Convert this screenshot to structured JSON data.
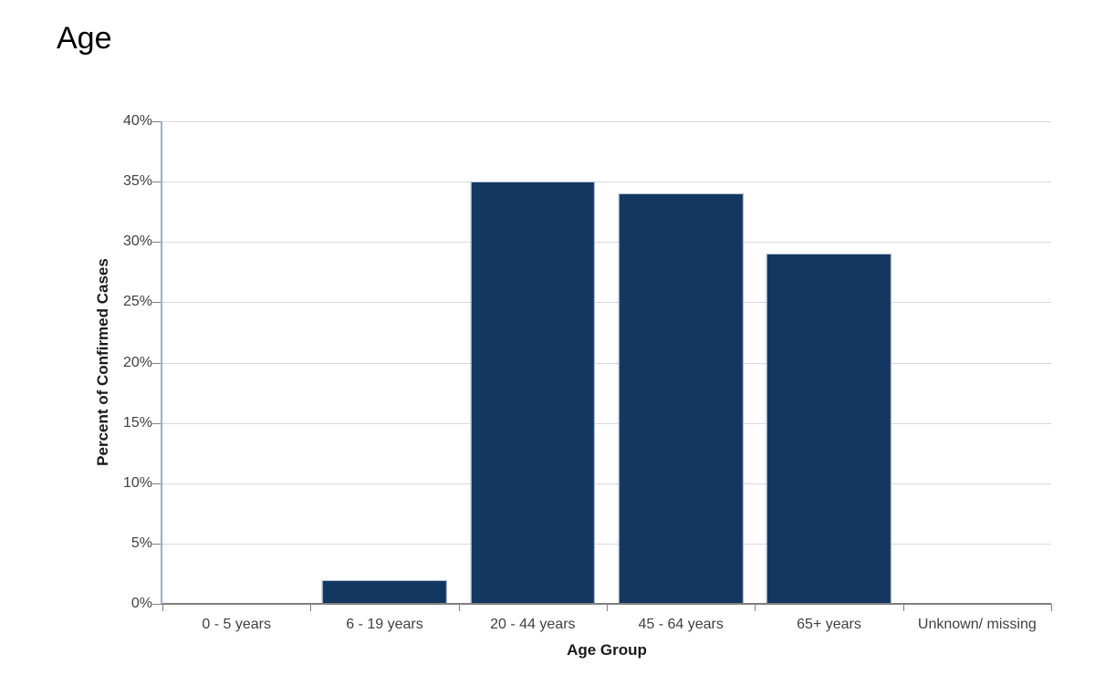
{
  "page": {
    "title": "Age"
  },
  "chart_data": {
    "type": "bar",
    "title": "Age",
    "categories": [
      "0 - 5 years",
      "6 - 19 years",
      "20 - 44 years",
      "45 - 64 years",
      "65+ years",
      "Unknown/ missing"
    ],
    "values": [
      0,
      2,
      35,
      34,
      29,
      0
    ],
    "xlabel": "Age Group",
    "ylabel": "Percent of Confirmed Cases",
    "ylim": [
      0,
      40
    ],
    "ytick_step": 5,
    "ytick_labels": [
      "0%",
      "5%",
      "10%",
      "15%",
      "20%",
      "25%",
      "30%",
      "35%",
      "40%"
    ],
    "grid": "horizontal-only",
    "legend": "none",
    "bar_gap_percent_of_slot": 16
  },
  "colors": {
    "bar_fill": "#133760",
    "bar_border": "#b7c3d6",
    "gridline": "#d9d9d9",
    "y_axis_line": "#9cadc8",
    "x_axis_line": "#7f7f7f",
    "tick_mark": "#7f7f7f",
    "tick_label": "#404040",
    "axis_title": "#1a1a1a",
    "title": "#000000",
    "background": "#ffffff"
  }
}
